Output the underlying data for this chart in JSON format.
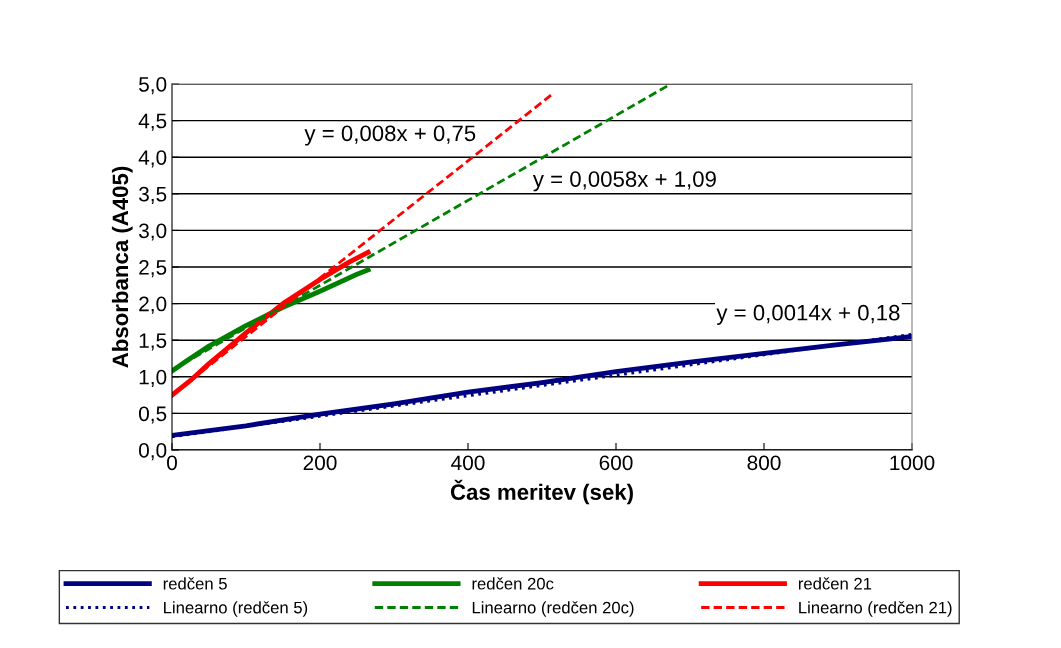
{
  "chart_data": {
    "type": "line",
    "xlabel": "Čas meritev (sek)",
    "ylabel": "Absorbanca (A405)",
    "xlim": [
      0,
      1000
    ],
    "xticks": [
      0,
      200,
      400,
      600,
      800,
      1000
    ],
    "ylim": [
      0,
      5
    ],
    "yticks": [
      {
        "value": 0,
        "label": "0,0"
      },
      {
        "value": 0.5,
        "label": "0,5"
      },
      {
        "value": 1,
        "label": "1,0"
      },
      {
        "value": 1.5,
        "label": "1,5"
      },
      {
        "value": 2,
        "label": "2,0"
      },
      {
        "value": 2.5,
        "label": "2,5"
      },
      {
        "value": 3,
        "label": "3,0"
      },
      {
        "value": 3.5,
        "label": "3,5"
      },
      {
        "value": 4,
        "label": "4,0"
      },
      {
        "value": 4.5,
        "label": "4,5"
      },
      {
        "value": 5,
        "label": "5,0"
      }
    ],
    "grid": "y",
    "legend": "bottom",
    "marker": "none",
    "series": [
      {
        "name": "redčen 5",
        "color": "#000080",
        "line_style": "solid",
        "x": [
          0,
          100,
          200,
          300,
          400,
          500,
          600,
          700,
          800,
          900,
          1000
        ],
        "values": [
          0.2,
          0.33,
          0.49,
          0.63,
          0.79,
          0.92,
          1.07,
          1.2,
          1.32,
          1.44,
          1.55
        ]
      },
      {
        "name": "redčen 20c",
        "color": "#008000",
        "line_style": "solid",
        "x": [
          0,
          20,
          50,
          100,
          150,
          200,
          250,
          265
        ],
        "values": [
          1.08,
          1.22,
          1.42,
          1.7,
          1.95,
          2.17,
          2.4,
          2.46
        ]
      },
      {
        "name": "redčen 21",
        "color": "#ff0000",
        "line_style": "solid",
        "x": [
          0,
          25,
          50,
          100,
          150,
          200,
          240,
          265
        ],
        "values": [
          0.75,
          0.95,
          1.18,
          1.6,
          2.0,
          2.33,
          2.57,
          2.7
        ]
      },
      {
        "name": "Linearno (redčen 5)",
        "color": "#000080",
        "line_style": "dotted",
        "x": [
          0,
          1000
        ],
        "values": [
          0.18,
          1.58
        ]
      },
      {
        "name": "Linearno (redčen 20c)",
        "color": "#008000",
        "line_style": "dashed",
        "x": [
          0,
          674
        ],
        "values": [
          1.09,
          5.0
        ]
      },
      {
        "name": "Linearno (redčen 21)",
        "color": "#ff0000",
        "line_style": "dashed",
        "x": [
          0,
          515
        ],
        "values": [
          0.75,
          4.87
        ]
      }
    ],
    "annotations": [
      "y = 0,008x + 0,75",
      "y = 0,0058x + 1,09",
      "y = 0,0014x + 0,18"
    ]
  }
}
